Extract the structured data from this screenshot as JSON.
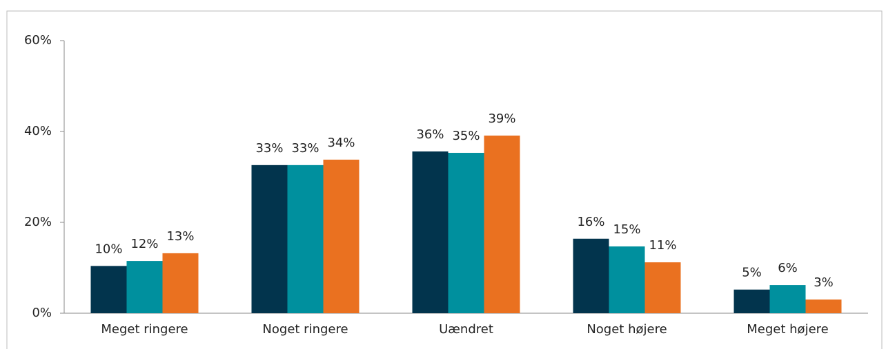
{
  "chart_data": {
    "type": "bar",
    "categories": [
      "Meget ringere",
      "Noget ringere",
      "Uændret",
      "Noget højere",
      "Meget højere"
    ],
    "series": [
      {
        "color": "#02344d",
        "values": [
          10.4,
          32.6,
          35.6,
          16.4,
          5.2
        ],
        "value_labels": [
          "10%",
          "33%",
          "36%",
          "16%",
          "5%"
        ]
      },
      {
        "color": "#00909e",
        "values": [
          11.5,
          32.6,
          35.3,
          14.7,
          6.2
        ],
        "value_labels": [
          "12%",
          "33%",
          "35%",
          "15%",
          "6%"
        ]
      },
      {
        "color": "#ea7120",
        "values": [
          13.2,
          33.8,
          39.1,
          11.2,
          3.0
        ],
        "value_labels": [
          "13%",
          "34%",
          "39%",
          "11%",
          "3%"
        ]
      }
    ],
    "ylim": [
      0,
      60
    ],
    "yticks": [
      {
        "value": 0,
        "label": "0%"
      },
      {
        "value": 20,
        "label": "20%"
      },
      {
        "value": 40,
        "label": "40%"
      },
      {
        "value": 60,
        "label": "60%"
      }
    ],
    "grid": false
  }
}
